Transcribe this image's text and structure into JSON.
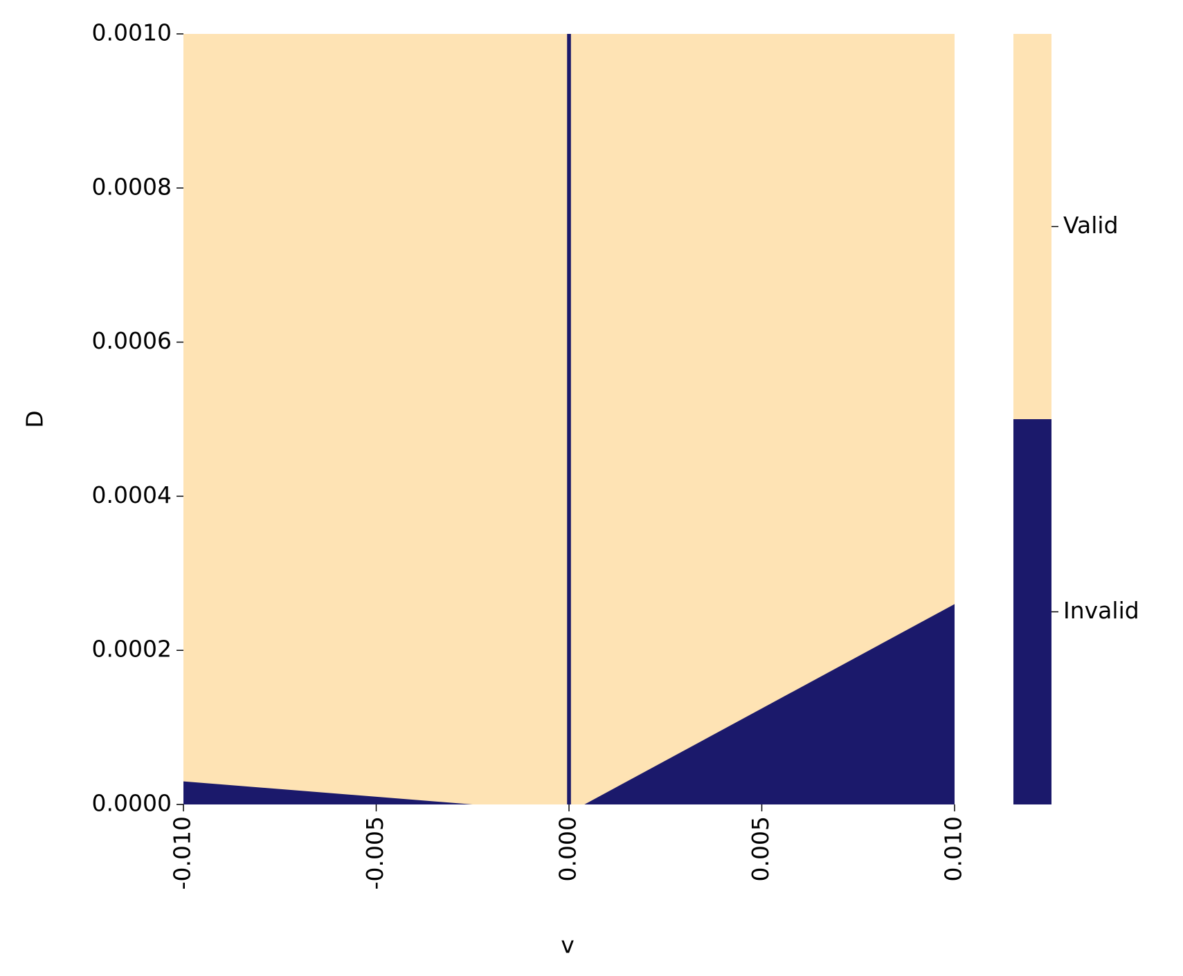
{
  "chart_data": {
    "type": "heatmap",
    "x_label": "v",
    "y_label": "D",
    "xlim": [
      -0.01,
      0.01
    ],
    "ylim": [
      0,
      0.001
    ],
    "xticks": [
      {
        "value": -0.01,
        "label": "-0.010"
      },
      {
        "value": -0.005,
        "label": "-0.005"
      },
      {
        "value": 0,
        "label": "0.000"
      },
      {
        "value": 0.005,
        "label": "0.005"
      },
      {
        "value": 0.01,
        "label": "0.010"
      }
    ],
    "yticks": [
      {
        "value": 0,
        "label": "0.0000"
      },
      {
        "value": 0.0002,
        "label": "0.0002"
      },
      {
        "value": 0.0004,
        "label": "0.0004"
      },
      {
        "value": 0.0006,
        "label": "0.0006"
      },
      {
        "value": 0.0008,
        "label": "0.0008"
      },
      {
        "value": 0.001,
        "label": "0.0010"
      }
    ],
    "regions": [
      {
        "name": "Invalid",
        "x": [
          -0.01,
          -0.01,
          -0.0025
        ],
        "y": [
          0,
          3e-05,
          0
        ]
      },
      {
        "name": "Invalid",
        "x": [
          -5e-05,
          -5e-05,
          5e-05,
          5e-05
        ],
        "y": [
          0,
          0.001,
          0.001,
          0
        ]
      },
      {
        "name": "Invalid",
        "x": [
          0.0004,
          0.01,
          0.01
        ],
        "y": [
          0,
          0.00026,
          0
        ]
      }
    ],
    "colorbar": {
      "lim": [
        0,
        1
      ],
      "ticks": [
        {
          "value": 0.25,
          "label": "Invalid"
        },
        {
          "value": 0.75,
          "label": "Valid"
        }
      ],
      "colors": [
        "#1b196b",
        "#fee3b4"
      ]
    }
  }
}
